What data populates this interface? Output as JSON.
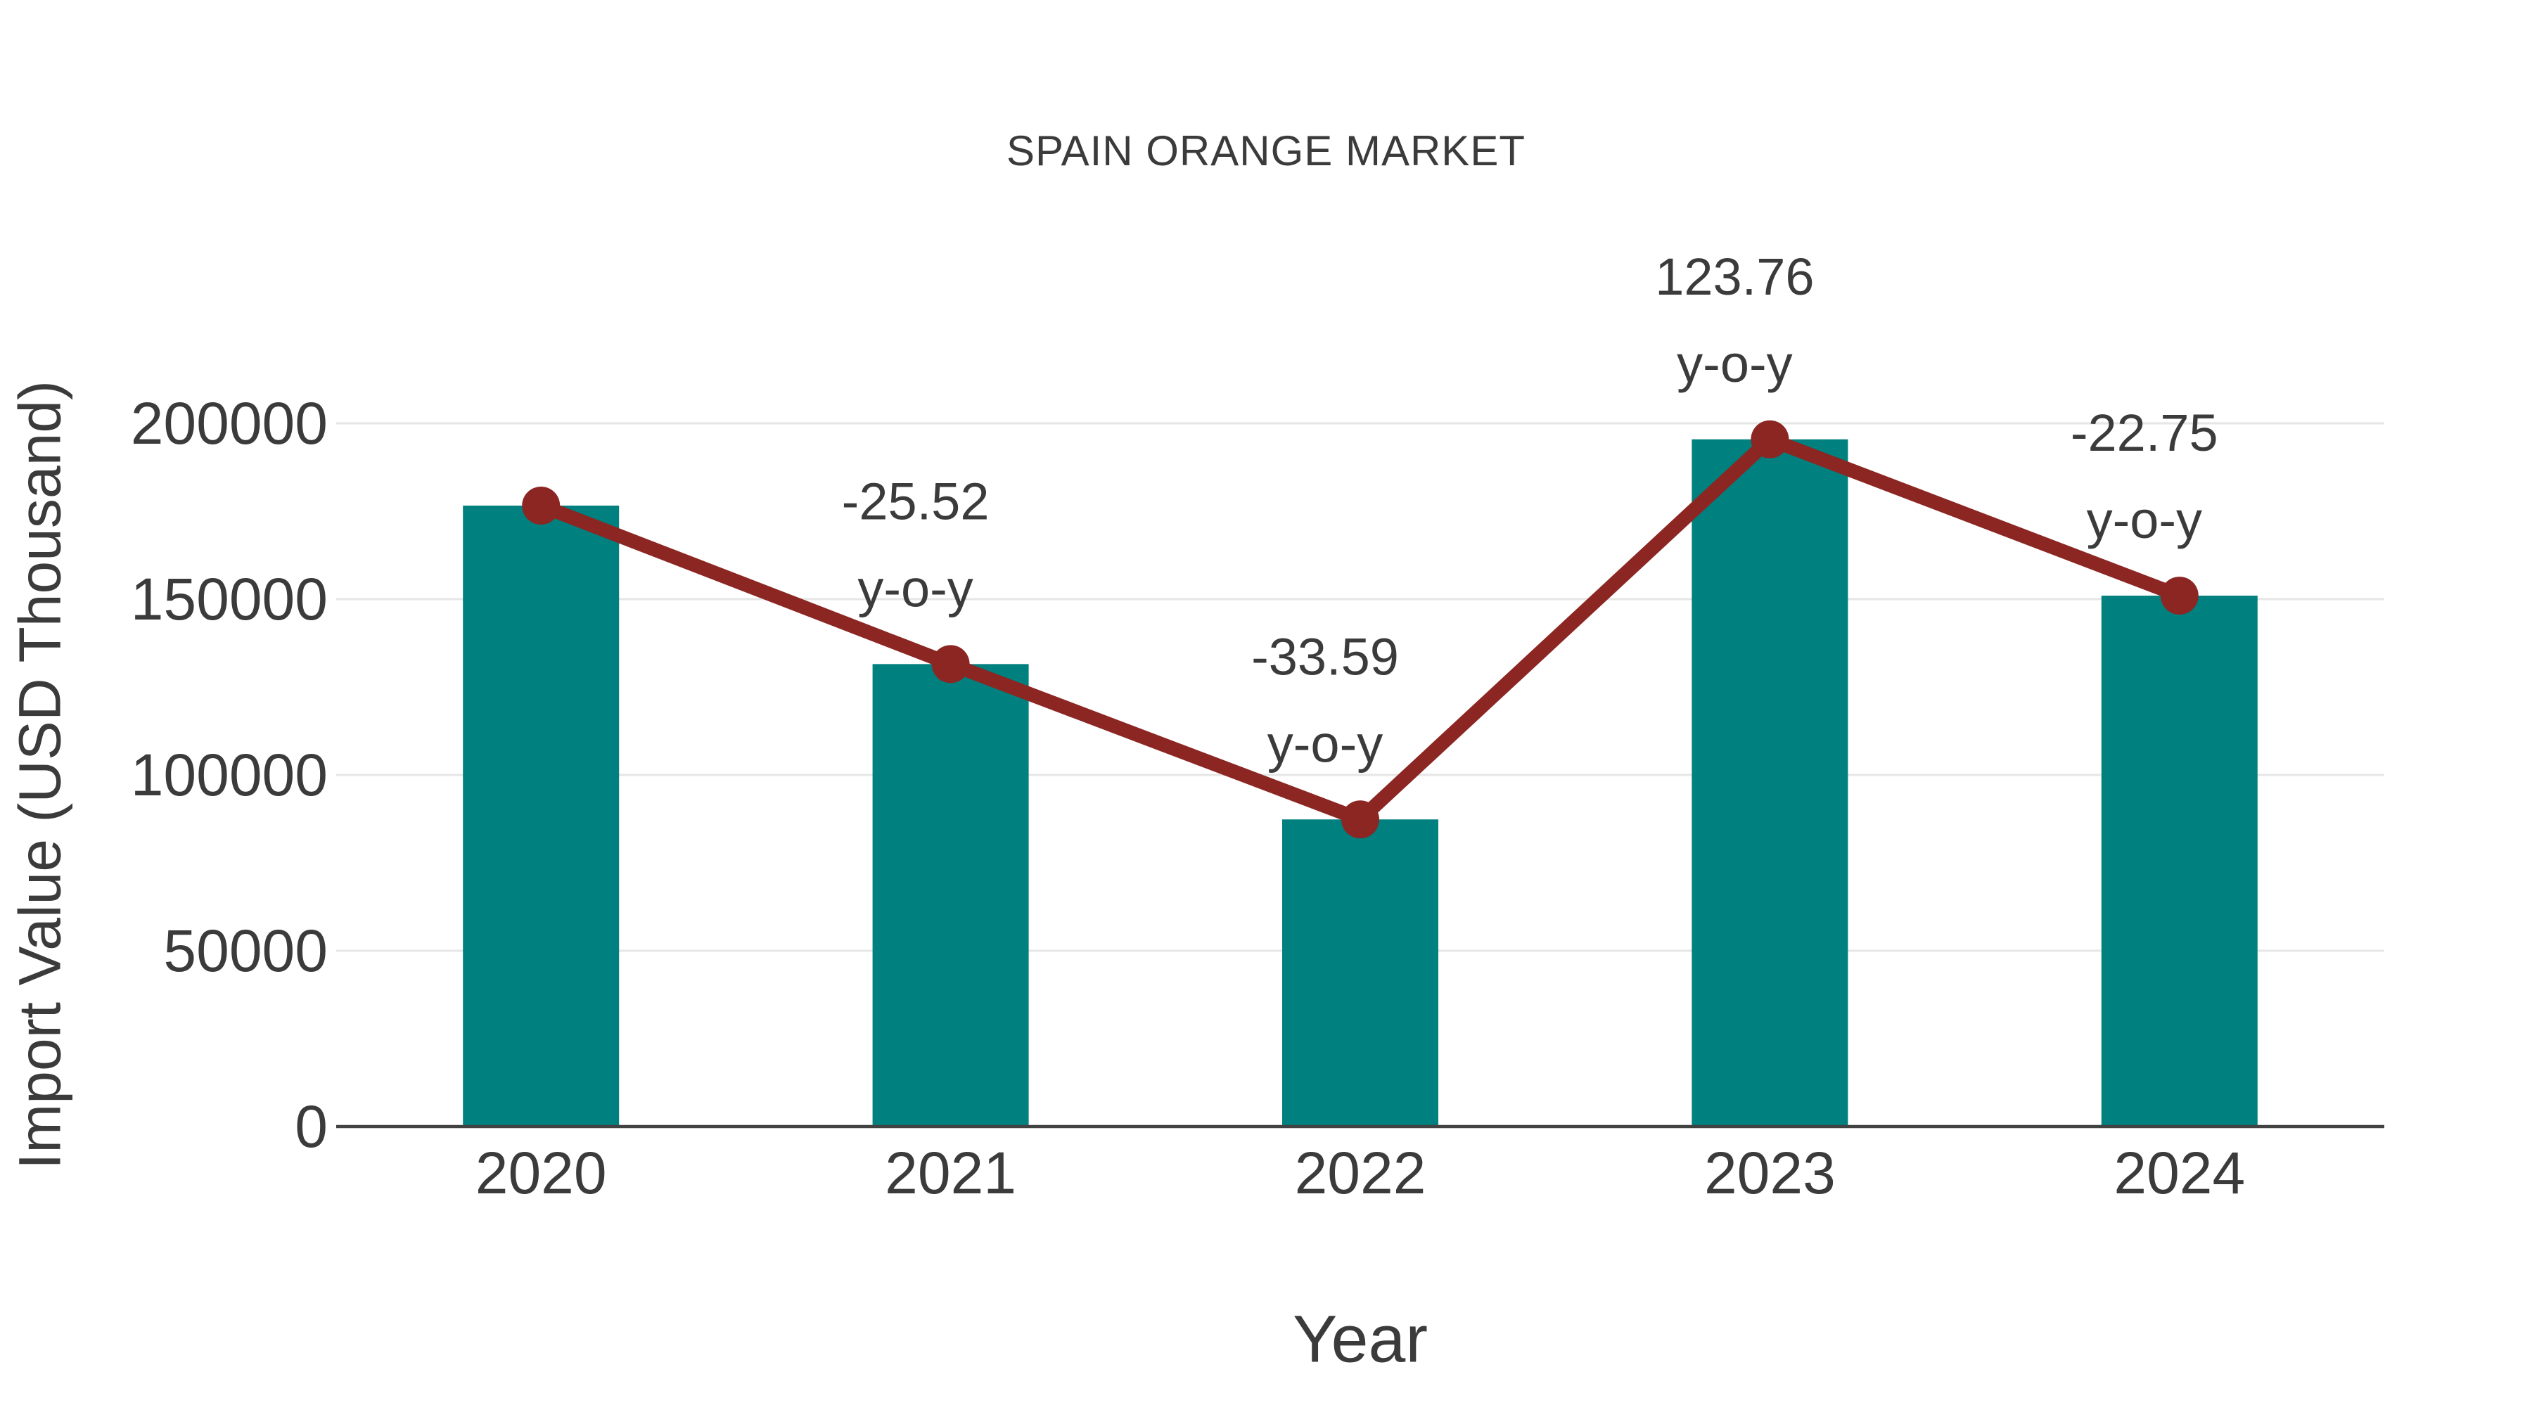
{
  "colors": {
    "bar": "#00807e",
    "line": "#8c2623",
    "grid": "#e6e6e6",
    "axis": "#424242",
    "text": "#3b3b3b"
  },
  "chart_data": {
    "type": "bar",
    "title": "SPAIN ORANGE MARKET",
    "xlabel": "Year",
    "ylabel": "Import Value (USD Thousand)",
    "categories": [
      "2020",
      "2021",
      "2022",
      "2023",
      "2024"
    ],
    "series": [
      {
        "name": "import-value-bars",
        "type": "bar",
        "color": "#00807e",
        "values": [
          176600,
          131530,
          87350,
          195450,
          150985
        ]
      },
      {
        "name": "yoy-trend-line",
        "type": "line",
        "color": "#8c2623",
        "marker": "circle",
        "values": [
          176600,
          131530,
          87350,
          195450,
          150985
        ]
      }
    ],
    "annotations": [
      {
        "category": "2021",
        "line1": "-25.52",
        "line2": "y-o-y"
      },
      {
        "category": "2022",
        "line1": "-33.59",
        "line2": "y-o-y"
      },
      {
        "category": "2023",
        "line1": "123.76",
        "line2": "y-o-y"
      },
      {
        "category": "2024",
        "line1": "-22.75",
        "line2": "y-o-y"
      }
    ],
    "yticks": [
      0,
      50000,
      100000,
      150000,
      200000
    ],
    "ylim": [
      0,
      200000
    ],
    "grid": "horizontal",
    "legend": "none"
  }
}
